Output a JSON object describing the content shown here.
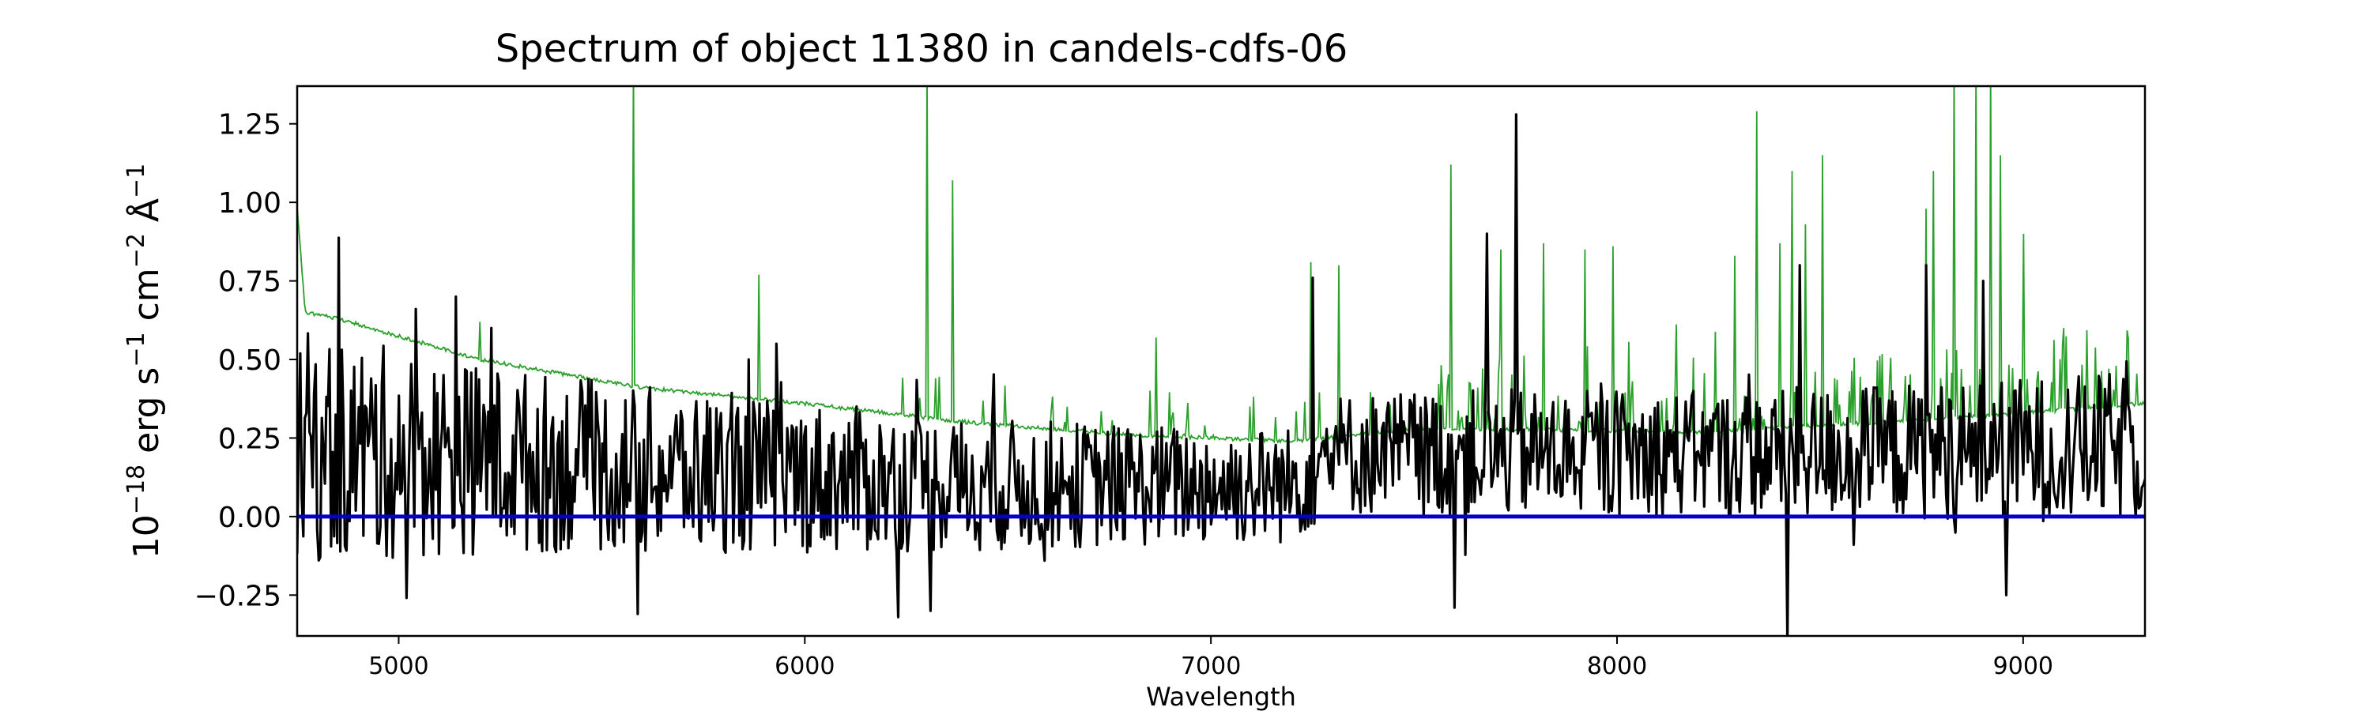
{
  "chart_data": {
    "type": "line",
    "title": "Spectrum of object 11380 in candels-cdfs-06",
    "xlabel": "Wavelength",
    "ylabel_parts": {
      "base": "10",
      "exp1": "−18",
      "unit_a": " erg s",
      "exp2": "−1",
      "unit_b": " cm",
      "exp3": "−2",
      "unit_c": " Å",
      "exp4": "−1"
    },
    "xlim": [
      4750,
      9300
    ],
    "ylim": [
      -0.38,
      1.37
    ],
    "x_ticks": [
      5000,
      6000,
      7000,
      8000,
      9000
    ],
    "x_tick_labels": [
      "5000",
      "6000",
      "7000",
      "8000",
      "9000"
    ],
    "y_ticks": [
      -0.25,
      0.0,
      0.25,
      0.5,
      0.75,
      1.0,
      1.25
    ],
    "y_tick_labels": [
      "−0.25",
      "0.00",
      "0.25",
      "0.50",
      "0.75",
      "1.00",
      "1.25"
    ],
    "grid": false,
    "legend": "none",
    "colors": {
      "flux": "#000000",
      "error": "#2ca02c",
      "zero": "#0000cc"
    },
    "series": [
      {
        "role": "flux",
        "x_start": 4750,
        "x_end": 9300,
        "n_points": 1200,
        "baseline_sections": [
          {
            "x": 4750,
            "y": 0.22
          },
          {
            "x": 5600,
            "y": 0.15
          },
          {
            "x": 6400,
            "y": 0.1
          },
          {
            "x": 7200,
            "y": 0.1
          },
          {
            "x": 7300,
            "y": 0.2
          },
          {
            "x": 8300,
            "y": 0.2
          },
          {
            "x": 9300,
            "y": 0.22
          }
        ],
        "spikes": [
          {
            "x": 5140,
            "y": 0.7
          },
          {
            "x": 5230,
            "y": 0.6
          },
          {
            "x": 5590,
            "y": -0.31
          },
          {
            "x": 5860,
            "y": 0.5
          },
          {
            "x": 5930,
            "y": 0.55
          },
          {
            "x": 6230,
            "y": -0.32
          },
          {
            "x": 6310,
            "y": -0.3
          },
          {
            "x": 7250,
            "y": 0.76
          },
          {
            "x": 7600,
            "y": -0.29
          },
          {
            "x": 7680,
            "y": 0.9
          },
          {
            "x": 7750,
            "y": 1.28
          },
          {
            "x": 8420,
            "y": -0.39
          },
          {
            "x": 8450,
            "y": 0.8
          },
          {
            "x": 8760,
            "y": 0.8
          },
          {
            "x": 8900,
            "y": 0.75
          },
          {
            "x": 8960,
            "y": -0.25
          }
        ]
      },
      {
        "role": "error",
        "baseline_sections": [
          {
            "x": 4750,
            "y": 0.98
          },
          {
            "x": 4770,
            "y": 0.65
          },
          {
            "x": 4850,
            "y": 0.63
          },
          {
            "x": 5200,
            "y": 0.5
          },
          {
            "x": 5600,
            "y": 0.41
          },
          {
            "x": 6000,
            "y": 0.36
          },
          {
            "x": 6400,
            "y": 0.3
          },
          {
            "x": 6800,
            "y": 0.26
          },
          {
            "x": 7200,
            "y": 0.24
          },
          {
            "x": 7500,
            "y": 0.28
          },
          {
            "x": 8200,
            "y": 0.27
          },
          {
            "x": 8800,
            "y": 0.31
          },
          {
            "x": 9300,
            "y": 0.36
          }
        ],
        "spikes": [
          {
            "x": 5200,
            "y": 0.62
          },
          {
            "x": 5578,
            "y": 1.45
          },
          {
            "x": 5888,
            "y": 0.77
          },
          {
            "x": 6300,
            "y": 1.45
          },
          {
            "x": 6363,
            "y": 1.07
          },
          {
            "x": 6865,
            "y": 0.57
          },
          {
            "x": 7245,
            "y": 0.81
          },
          {
            "x": 7316,
            "y": 0.8
          },
          {
            "x": 7590,
            "y": 1.12
          },
          {
            "x": 7715,
            "y": 0.85
          },
          {
            "x": 7820,
            "y": 0.87
          },
          {
            "x": 7920,
            "y": 0.85
          },
          {
            "x": 7990,
            "y": 0.86
          },
          {
            "x": 8290,
            "y": 0.83
          },
          {
            "x": 8344,
            "y": 1.29
          },
          {
            "x": 8400,
            "y": 0.87
          },
          {
            "x": 8430,
            "y": 1.1
          },
          {
            "x": 8465,
            "y": 0.93
          },
          {
            "x": 8505,
            "y": 1.15
          },
          {
            "x": 8760,
            "y": 0.98
          },
          {
            "x": 8780,
            "y": 1.1
          },
          {
            "x": 8830,
            "y": 1.45
          },
          {
            "x": 8885,
            "y": 1.45
          },
          {
            "x": 8920,
            "y": 1.45
          },
          {
            "x": 8945,
            "y": 1.15
          },
          {
            "x": 9000,
            "y": 0.9
          },
          {
            "x": 9100,
            "y": 0.6
          },
          {
            "x": 9230,
            "y": 0.48
          }
        ]
      },
      {
        "role": "zero",
        "x": [
          4750,
          9300
        ],
        "y": [
          0,
          0
        ]
      }
    ]
  }
}
